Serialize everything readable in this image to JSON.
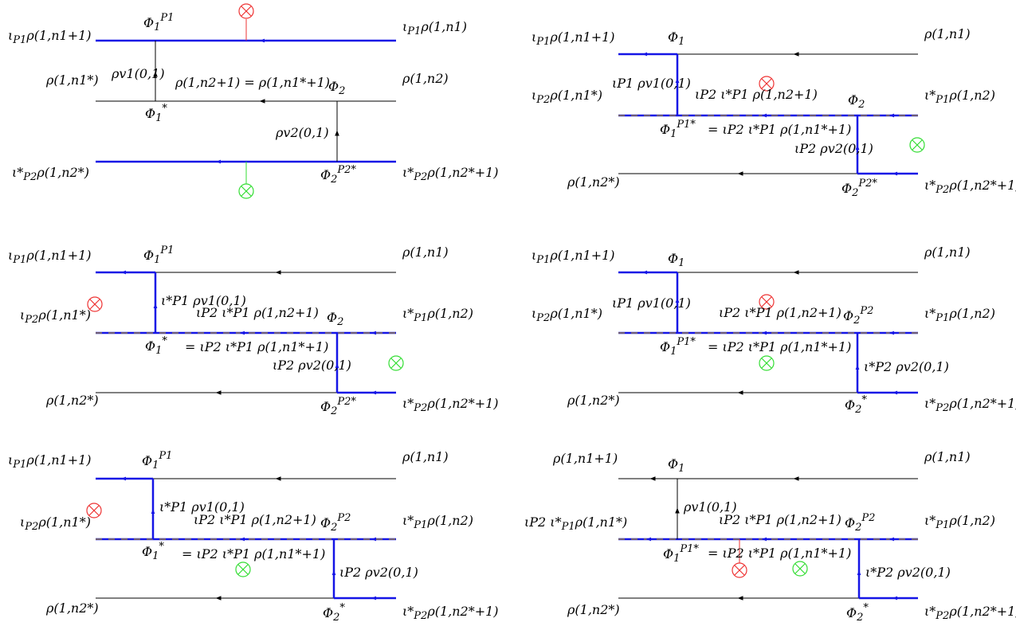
{
  "colors": {
    "line": "#000000",
    "blue": "#1515e6",
    "red": "#ee3333",
    "green": "#33dd33",
    "gold": "#c8a400"
  },
  "icons": {
    "red_cross": "red-otimes-icon",
    "green_cross": "green-otimes-icon"
  },
  "panels": [
    {
      "ll": [
        "ι",
        "P1",
        "ρ(1,n1+1)"
      ],
      "lm": [
        "",
        "",
        "ρ(1,n1*)"
      ],
      "lb": [
        "ι*",
        "P2",
        "ρ(1,n2*)"
      ],
      "rt": [
        "ι",
        "P1",
        "ρ(1,n1)"
      ],
      "rm": [
        "",
        "",
        "ρ(1,n2)"
      ],
      "rb": [
        "ι*",
        "P2",
        "ρ(1,n2*+1)"
      ],
      "phi1_top": [
        "Φ",
        "1",
        "P1"
      ],
      "phi1_bot": [
        "Φ",
        "1",
        "*"
      ],
      "phi2_top": [
        "Φ",
        "2",
        ""
      ],
      "phi2_bot": [
        "Φ",
        "2",
        "P2*"
      ],
      "eq_a": "ρ(1,n2+1) = ρ(1,n1*+1)",
      "eq_b": "",
      "rho1": "ρv1(0,1)",
      "rho2": "ρv2(0,1)"
    },
    {
      "ll": [
        "ι",
        "P1",
        "ρ(1,n1+1)"
      ],
      "lm": [
        "ι",
        "P2",
        "ρ(1,n1*)"
      ],
      "lb": [
        "",
        "",
        "ρ(1,n2*)"
      ],
      "rt": [
        "",
        "",
        "ρ(1,n1)"
      ],
      "rm": [
        "ι*",
        "P1",
        "ρ(1,n2)"
      ],
      "rb": [
        "ι*",
        "P2",
        "ρ(1,n2*+1)"
      ],
      "phi1_top": [
        "Φ",
        "1",
        ""
      ],
      "phi1_bot": [
        "Φ",
        "1",
        "P1*"
      ],
      "phi2_top": [
        "Φ",
        "2",
        ""
      ],
      "phi2_bot": [
        "Φ",
        "2",
        "P2*"
      ],
      "eq_a": "ιP2 ι*P1 ρ(1,n2+1)",
      "eq_b": "= ιP2 ι*P1 ρ(1,n1*+1)",
      "rho1": "ιP1 ρv1(0,1)",
      "rho2": "ιP2 ρv2(0,1)"
    },
    {
      "ll": [
        "ι",
        "P1",
        "ρ(1,n1+1)"
      ],
      "lm": [
        "ι",
        "P2",
        "ρ(1,n1*)"
      ],
      "lb": [
        "",
        "",
        "ρ(1,n2*)"
      ],
      "rt": [
        "",
        "",
        "ρ(1,n1)"
      ],
      "rm": [
        "ι*",
        "P1",
        "ρ(1,n2)"
      ],
      "rb": [
        "ι*",
        "P2",
        "ρ(1,n2*+1)"
      ],
      "phi1_top": [
        "Φ",
        "1",
        "P1"
      ],
      "phi1_bot": [
        "Φ",
        "1",
        "*"
      ],
      "phi2_top": [
        "Φ",
        "2",
        ""
      ],
      "phi2_bot": [
        "Φ",
        "2",
        "P2*"
      ],
      "eq_a": "ιP2 ι*P1 ρ(1,n2+1)",
      "eq_b": "= ιP2 ι*P1 ρ(1,n1*+1)",
      "rho1": "ι*P1 ρv1(0,1)",
      "rho2": "ιP2 ρv2(0,1)"
    },
    {
      "ll": [
        "ι",
        "P1",
        "ρ(1,n1+1)"
      ],
      "lm": [
        "ι",
        "P2",
        "ρ(1,n1*)"
      ],
      "lb": [
        "",
        "",
        "ρ(1,n2*)"
      ],
      "rt": [
        "",
        "",
        "ρ(1,n1)"
      ],
      "rm": [
        "ι*",
        "P1",
        "ρ(1,n2)"
      ],
      "rb": [
        "ι*",
        "P2",
        "ρ(1,n2*+1)"
      ],
      "phi1_top": [
        "Φ",
        "1",
        ""
      ],
      "phi1_bot": [
        "Φ",
        "1",
        "P1*"
      ],
      "phi2_top": [
        "Φ",
        "2",
        "P2"
      ],
      "phi2_bot": [
        "Φ",
        "2",
        "*"
      ],
      "eq_a": "ιP2 ι*P1 ρ(1,n2+1)",
      "eq_b": "= ιP2 ι*P1 ρ(1,n1*+1)",
      "rho1": "ιP1 ρv1(0,1)",
      "rho2": "ι*P2 ρv2(0,1)"
    },
    {
      "ll": [
        "ι",
        "P1",
        "ρ(1,n1+1)"
      ],
      "lm": [
        "ι",
        "P2",
        "ρ(1,n1*)"
      ],
      "lb": [
        "",
        "",
        "ρ(1,n2*)"
      ],
      "rt": [
        "",
        "",
        "ρ(1,n1)"
      ],
      "rm": [
        "ι*",
        "P1",
        "ρ(1,n2)"
      ],
      "rb": [
        "ι*",
        "P2",
        "ρ(1,n2*+1)"
      ],
      "phi1_top": [
        "Φ",
        "1",
        "P1"
      ],
      "phi1_bot": [
        "Φ",
        "1",
        "*"
      ],
      "phi2_top": [
        "Φ",
        "2",
        "P2"
      ],
      "phi2_bot": [
        "Φ",
        "2",
        "*"
      ],
      "eq_a": "ιP2 ι*P1 ρ(1,n2+1)",
      "eq_b": "= ιP2 ι*P1 ρ(1,n1*+1)",
      "rho1": "ι*P1 ρv1(0,1)",
      "rho2": "ιP2 ρv2(0,1)"
    },
    {
      "ll": [
        "",
        "",
        "ρ(1,n1+1)"
      ],
      "lm": [
        "ιP2 ι*",
        "P1",
        "ρ(1,n1*)"
      ],
      "lb": [
        "",
        "",
        "ρ(1,n2*)"
      ],
      "rt": [
        "",
        "",
        "ρ(1,n1)"
      ],
      "rm": [
        "ι*",
        "P1",
        "ρ(1,n2)"
      ],
      "rb": [
        "ι*",
        "P2",
        "ρ(1,n2*+1)"
      ],
      "phi1_top": [
        "Φ",
        "1",
        ""
      ],
      "phi1_bot": [
        "Φ",
        "1",
        "P1*"
      ],
      "phi2_top": [
        "Φ",
        "2",
        "P2"
      ],
      "phi2_bot": [
        "Φ",
        "2",
        "*"
      ],
      "eq_a": "ιP2 ι*P1 ρ(1,n2+1)",
      "eq_b": "= ιP2 ι*P1 ρ(1,n1*+1)",
      "rho1": "ρv1(0,1)",
      "rho2": "ι*P2 ρv2(0,1)"
    }
  ]
}
